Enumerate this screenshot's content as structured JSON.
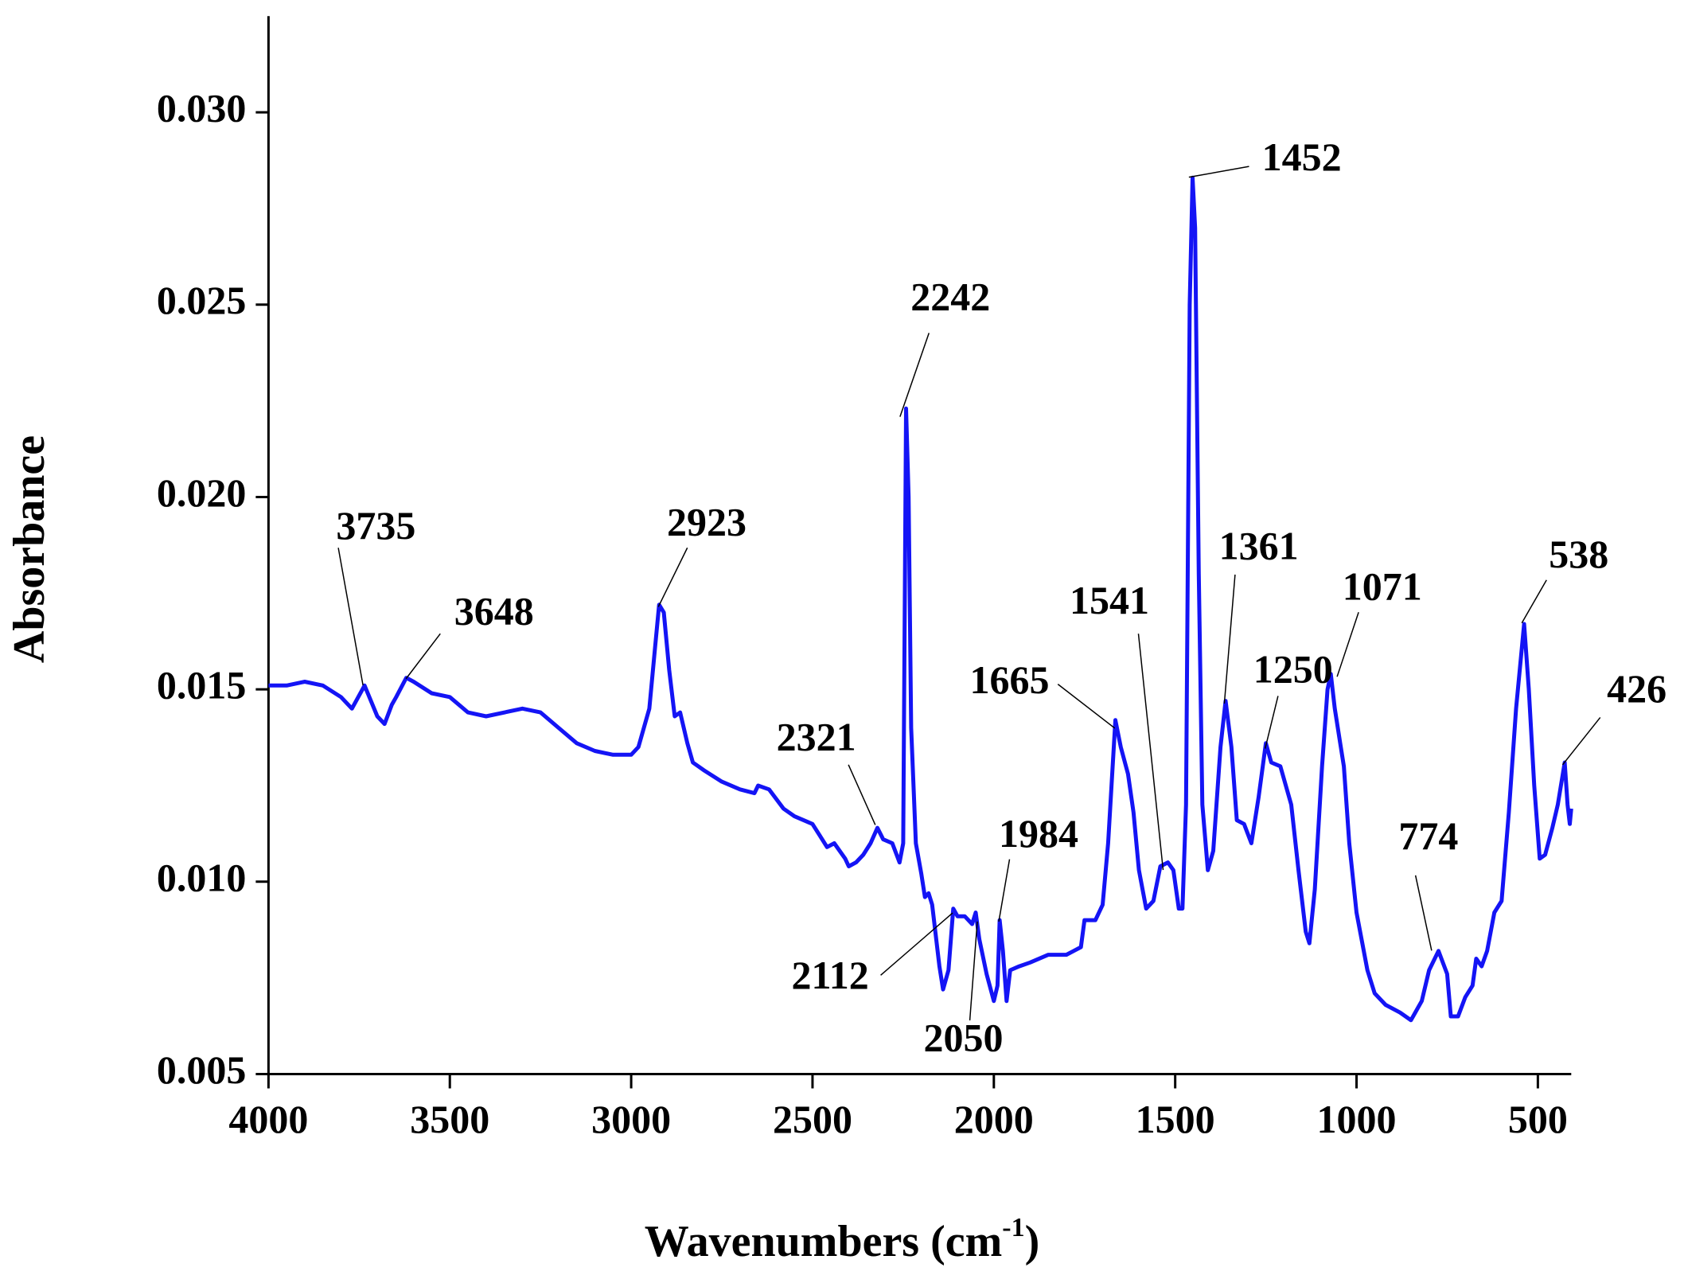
{
  "chart_data": {
    "type": "line",
    "y_label": "Absorbance",
    "x_label": {
      "text": "Wavenumbers  (cm",
      "sup": "-1",
      "close": ")"
    },
    "xlim": [
      4000,
      408
    ],
    "ylim": [
      0.005,
      0.0325
    ],
    "xticks": [
      4000,
      3500,
      3000,
      2500,
      2000,
      1500,
      1000,
      500
    ],
    "yticks": [
      {
        "value": 0.005,
        "label": "0.005"
      },
      {
        "value": 0.01,
        "label": "0.010"
      },
      {
        "value": 0.015,
        "label": "0.015"
      },
      {
        "value": 0.02,
        "label": "0.020"
      },
      {
        "value": 0.025,
        "label": "0.025"
      },
      {
        "value": 0.03,
        "label": "0.030"
      }
    ],
    "color": "#1414f5",
    "x": [
      4000,
      3950,
      3900,
      3850,
      3800,
      3770,
      3735,
      3700,
      3680,
      3660,
      3648,
      3620,
      3600,
      3550,
      3500,
      3450,
      3400,
      3300,
      3250,
      3200,
      3150,
      3100,
      3050,
      3000,
      2980,
      2950,
      2935,
      2923,
      2910,
      2895,
      2880,
      2865,
      2845,
      2830,
      2800,
      2750,
      2700,
      2660,
      2650,
      2620,
      2580,
      2550,
      2500,
      2480,
      2460,
      2440,
      2410,
      2400,
      2380,
      2360,
      2340,
      2321,
      2305,
      2280,
      2260,
      2250,
      2242,
      2235,
      2228,
      2215,
      2200,
      2190,
      2180,
      2170,
      2150,
      2140,
      2125,
      2112,
      2100,
      2080,
      2060,
      2050,
      2040,
      2020,
      2000,
      1990,
      1984,
      1975,
      1965,
      1955,
      1930,
      1900,
      1850,
      1800,
      1780,
      1760,
      1750,
      1720,
      1700,
      1685,
      1665,
      1650,
      1630,
      1615,
      1600,
      1580,
      1560,
      1541,
      1520,
      1505,
      1490,
      1480,
      1470,
      1460,
      1452,
      1445,
      1435,
      1425,
      1410,
      1395,
      1375,
      1361,
      1345,
      1330,
      1310,
      1290,
      1270,
      1250,
      1235,
      1210,
      1180,
      1160,
      1140,
      1130,
      1115,
      1095,
      1080,
      1071,
      1060,
      1045,
      1035,
      1020,
      1000,
      970,
      950,
      920,
      880,
      850,
      820,
      800,
      774,
      750,
      740,
      720,
      700,
      680,
      670,
      655,
      640,
      620,
      600,
      580,
      560,
      538,
      525,
      510,
      495,
      480,
      460,
      445,
      426,
      418,
      412,
      408
    ],
    "values": [
      0.0151,
      0.0151,
      0.0152,
      0.0151,
      0.0148,
      0.0145,
      0.0151,
      0.0143,
      0.0141,
      0.0146,
      0.0148,
      0.0153,
      0.0152,
      0.0149,
      0.0148,
      0.0144,
      0.0143,
      0.0145,
      0.0144,
      0.014,
      0.0136,
      0.0134,
      0.0133,
      0.0133,
      0.0135,
      0.0145,
      0.016,
      0.0172,
      0.017,
      0.0155,
      0.0143,
      0.0144,
      0.0136,
      0.0131,
      0.0129,
      0.0126,
      0.0124,
      0.0123,
      0.0125,
      0.0124,
      0.0119,
      0.0117,
      0.0115,
      0.0112,
      0.0109,
      0.011,
      0.0106,
      0.0104,
      0.0105,
      0.0107,
      0.011,
      0.0114,
      0.0111,
      0.011,
      0.0105,
      0.011,
      0.0223,
      0.02,
      0.014,
      0.011,
      0.0102,
      0.0096,
      0.0097,
      0.0094,
      0.0078,
      0.0072,
      0.0077,
      0.0093,
      0.0091,
      0.0091,
      0.0089,
      0.0092,
      0.0085,
      0.0076,
      0.0069,
      0.0073,
      0.009,
      0.0082,
      0.0069,
      0.0077,
      0.0078,
      0.0079,
      0.0081,
      0.0081,
      0.0082,
      0.0083,
      0.009,
      0.009,
      0.0094,
      0.011,
      0.0142,
      0.0135,
      0.0128,
      0.0118,
      0.0103,
      0.0093,
      0.0095,
      0.0104,
      0.0105,
      0.0103,
      0.0093,
      0.0093,
      0.012,
      0.025,
      0.0283,
      0.027,
      0.018,
      0.012,
      0.0103,
      0.0108,
      0.0135,
      0.0147,
      0.0135,
      0.0116,
      0.0115,
      0.011,
      0.0122,
      0.0136,
      0.0131,
      0.013,
      0.012,
      0.0103,
      0.0087,
      0.0084,
      0.0098,
      0.013,
      0.015,
      0.0154,
      0.0145,
      0.0136,
      0.013,
      0.011,
      0.0092,
      0.0077,
      0.0071,
      0.0068,
      0.0066,
      0.0064,
      0.0069,
      0.0077,
      0.0082,
      0.0076,
      0.0065,
      0.0065,
      0.007,
      0.0073,
      0.008,
      0.0078,
      0.0082,
      0.0092,
      0.0095,
      0.0118,
      0.0145,
      0.0167,
      0.015,
      0.0125,
      0.0106,
      0.0107,
      0.0114,
      0.012,
      0.0131,
      0.012,
      0.0115,
      0.0119
    ],
    "annotations": [
      "3735",
      "3648",
      "2923",
      "2321",
      "2242",
      "2112",
      "2050",
      "1984",
      "1665",
      "1541",
      "1452",
      "1361",
      "1250",
      "1071",
      "774",
      "538",
      "426"
    ]
  }
}
